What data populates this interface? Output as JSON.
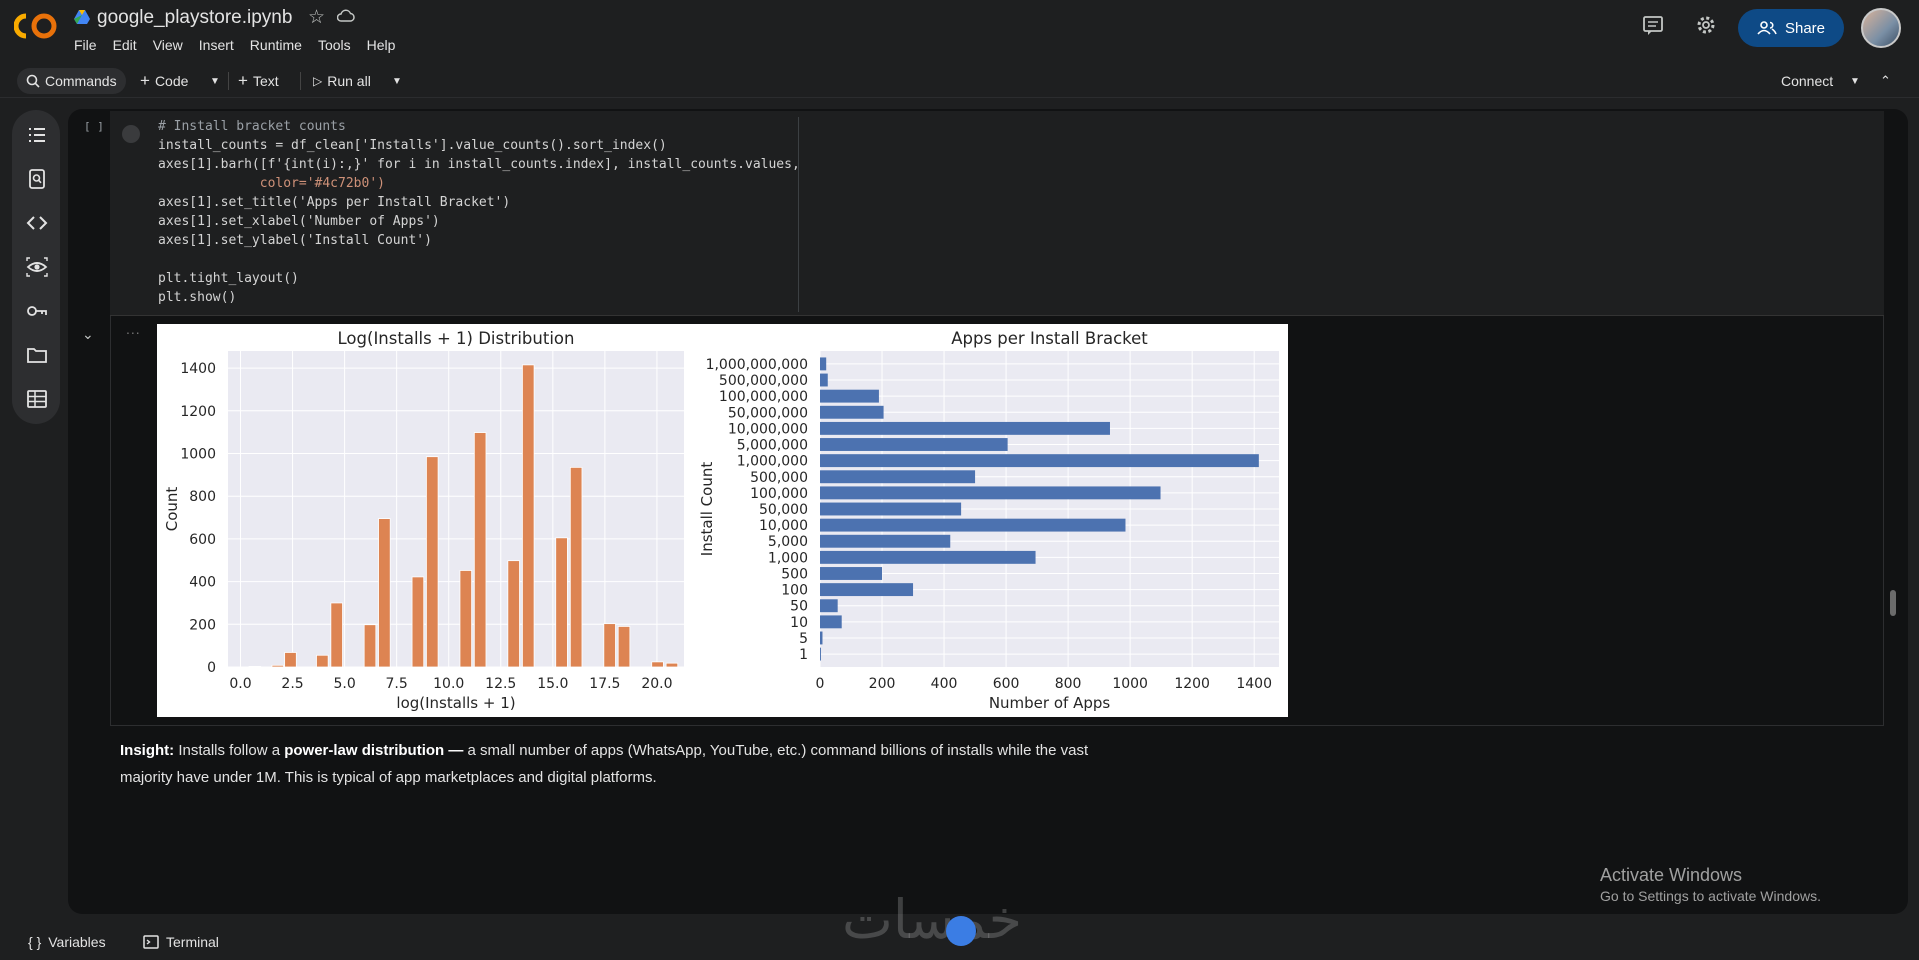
{
  "app": {
    "logo": "CO",
    "filename": "google_playstore.ipynb",
    "menus": [
      "File",
      "Edit",
      "View",
      "Insert",
      "Runtime",
      "Tools",
      "Help"
    ],
    "share_label": "Share"
  },
  "toolbar": {
    "commands": "Commands",
    "code": "Code",
    "text": "Text",
    "run_all": "Run all",
    "connect": "Connect"
  },
  "cell": {
    "bracket": "[ ]",
    "code_lines": [
      "# Install bracket counts",
      "install_counts = df_clean['Installs'].value_counts().sort_index()",
      "axes[1].barh([f'{int(i):,}' for i in install_counts.index], install_counts.values,",
      "             color='#4c72b0')",
      "axes[1].set_title('Apps per Install Bracket')",
      "axes[1].set_xlabel('Number of Apps')",
      "axes[1].set_ylabel('Install Count')",
      "",
      "plt.tight_layout()",
      "plt.show()"
    ],
    "output_dots": "..."
  },
  "markdown": {
    "bold1": "Insight:",
    "text1": " Installs follow a ",
    "bold2": "power-law distribution —",
    "text2": " a small number of apps (WhatsApp, YouTube, etc.) command billions of installs while the vast majority have under 1M. This is typical of app marketplaces and digital platforms."
  },
  "windows_notice": {
    "line1": "Activate Windows",
    "line2": "Go to Settings to activate Windows."
  },
  "statusbar": {
    "variables": "Variables",
    "terminal": "Terminal"
  },
  "watermark": "خمسات",
  "chart_data": [
    {
      "type": "bar",
      "title": "Log(Installs + 1) Distribution",
      "xlabel": "log(Installs + 1)",
      "ylabel": "Count",
      "xlim": [
        -0.6,
        21.3
      ],
      "ylim": [
        0,
        1480
      ],
      "xticks": [
        "0.0",
        "2.5",
        "5.0",
        "7.5",
        "10.0",
        "12.5",
        "15.0",
        "17.5",
        "20.0"
      ],
      "yticks": [
        "0",
        "200",
        "400",
        "600",
        "800",
        "1000",
        "1200",
        "1400"
      ],
      "color": "#dd8452",
      "bins": [
        {
          "x": 0.69,
          "value": 3
        },
        {
          "x": 1.79,
          "value": 8
        },
        {
          "x": 2.4,
          "value": 68
        },
        {
          "x": 3.93,
          "value": 55
        },
        {
          "x": 4.62,
          "value": 300
        },
        {
          "x": 6.22,
          "value": 198
        },
        {
          "x": 6.91,
          "value": 695
        },
        {
          "x": 8.52,
          "value": 422
        },
        {
          "x": 9.21,
          "value": 985
        },
        {
          "x": 10.82,
          "value": 452
        },
        {
          "x": 11.51,
          "value": 1098
        },
        {
          "x": 13.12,
          "value": 498
        },
        {
          "x": 13.82,
          "value": 1415
        },
        {
          "x": 15.42,
          "value": 605
        },
        {
          "x": 16.12,
          "value": 935
        },
        {
          "x": 17.73,
          "value": 203
        },
        {
          "x": 18.42,
          "value": 190
        },
        {
          "x": 20.03,
          "value": 24
        },
        {
          "x": 20.72,
          "value": 18
        }
      ],
      "bin_width": 0.56,
      "grid": true
    },
    {
      "type": "bar",
      "orientation": "horizontal",
      "title": "Apps per Install Bracket",
      "xlabel": "Number of Apps",
      "ylabel": "Install Count",
      "xlim": [
        0,
        1480
      ],
      "xticks": [
        "0",
        "200",
        "400",
        "600",
        "800",
        "1000",
        "1200",
        "1400"
      ],
      "color": "#4c72b0",
      "categories": [
        "1,000,000,000",
        "500,000,000",
        "100,000,000",
        "50,000,000",
        "10,000,000",
        "5,000,000",
        "1,000,000",
        "500,000",
        "100,000",
        "50,000",
        "10,000",
        "5,000",
        "1,000",
        "500",
        "100",
        "50",
        "10",
        "5",
        "1"
      ],
      "values": [
        20,
        25,
        190,
        205,
        935,
        605,
        1415,
        500,
        1098,
        455,
        985,
        420,
        695,
        200,
        300,
        57,
        70,
        8,
        3
      ],
      "grid": true
    }
  ]
}
